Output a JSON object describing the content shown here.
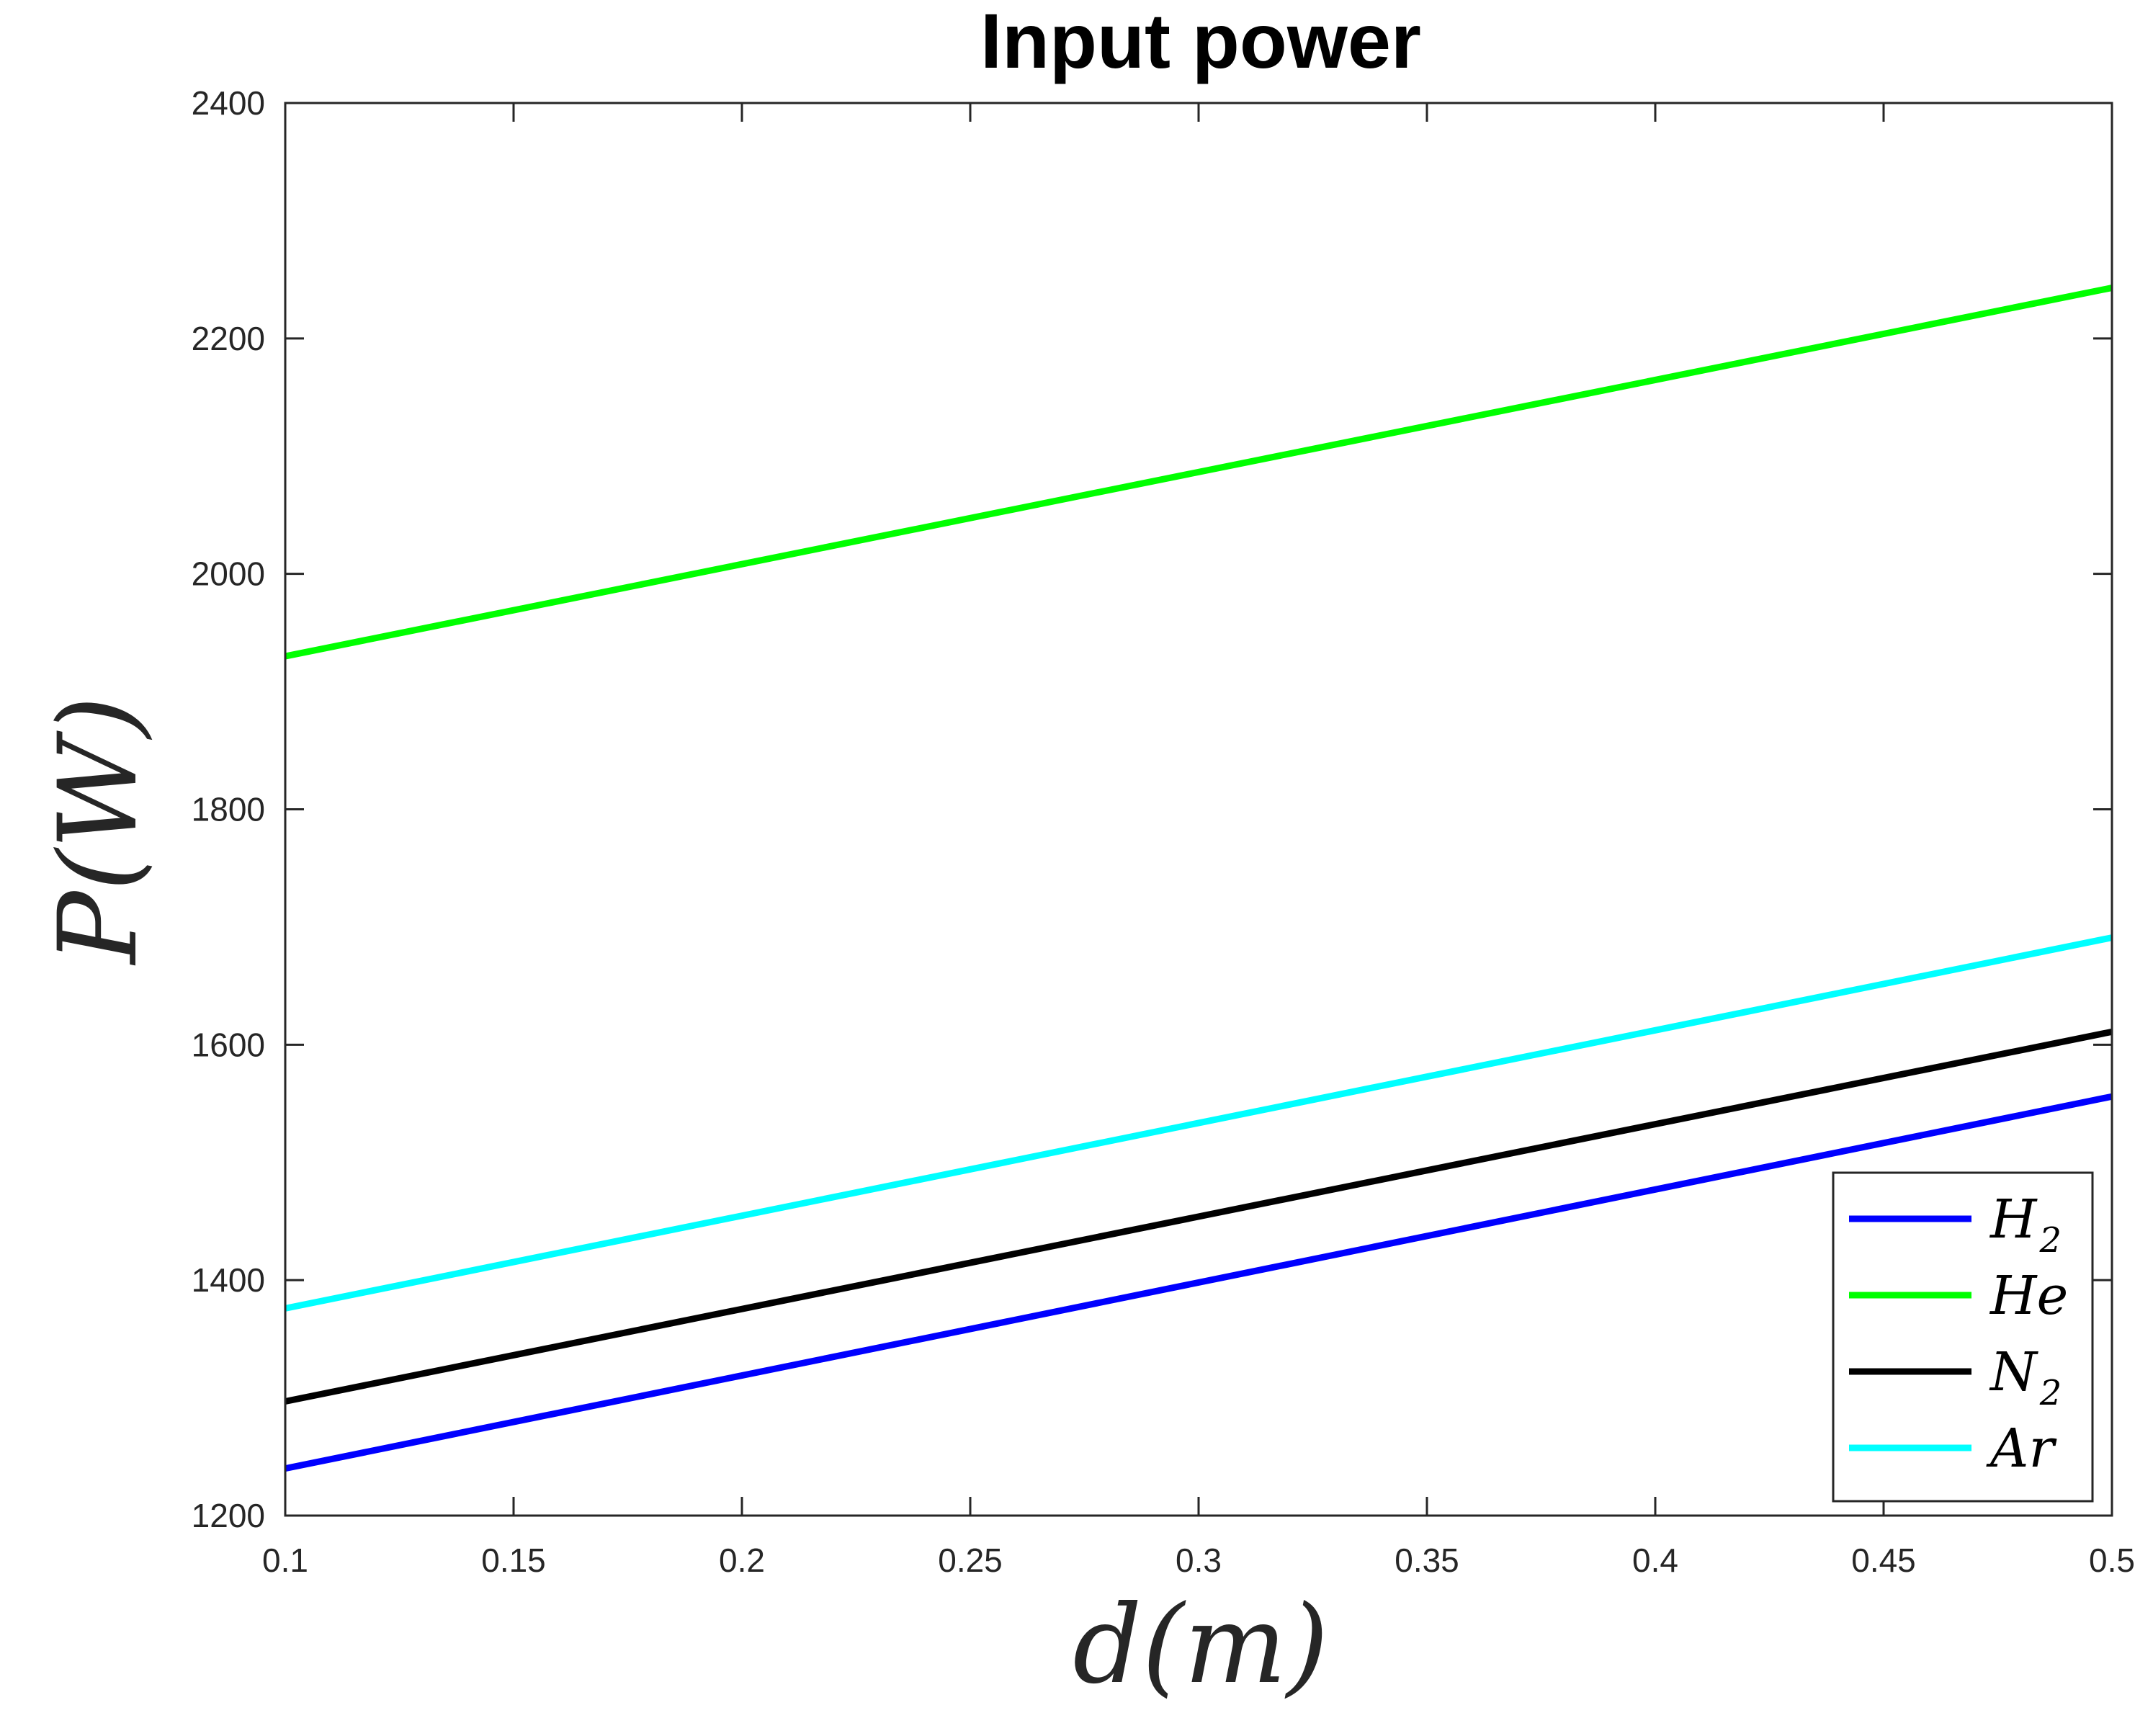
{
  "chart_data": {
    "type": "line",
    "title": "Input power",
    "xlabel": "d(m)",
    "ylabel": "P(W)",
    "xlim": [
      0.1,
      0.5
    ],
    "ylim": [
      1200,
      2400
    ],
    "xticks": [
      0.1,
      0.15,
      0.2,
      0.25,
      0.3,
      0.35,
      0.4,
      0.45,
      0.5
    ],
    "xtick_labels": [
      "0.1",
      "0.15",
      "0.2",
      "0.25",
      "0.3",
      "0.35",
      "0.4",
      "0.45",
      "0.5"
    ],
    "yticks": [
      1200,
      1400,
      1600,
      1800,
      2000,
      2200,
      2400
    ],
    "ytick_labels": [
      "1200",
      "1400",
      "1600",
      "1800",
      "2000",
      "2200",
      "2400"
    ],
    "grid": false,
    "legend_position": "bottom-right",
    "series": [
      {
        "name": "H",
        "subscript": "2",
        "color": "#0000ff",
        "x": [
          0.1,
          0.5
        ],
        "y": [
          1240,
          1556
        ]
      },
      {
        "name": "He",
        "subscript": "",
        "color": "#00ff00",
        "x": [
          0.1,
          0.5
        ],
        "y": [
          1930,
          2243
        ]
      },
      {
        "name": "N",
        "subscript": "2",
        "color": "#000000",
        "x": [
          0.1,
          0.5
        ],
        "y": [
          1297,
          1611
        ]
      },
      {
        "name": "Ar",
        "subscript": "",
        "color": "#00ffff",
        "x": [
          0.1,
          0.5
        ],
        "y": [
          1376,
          1691
        ]
      }
    ]
  }
}
